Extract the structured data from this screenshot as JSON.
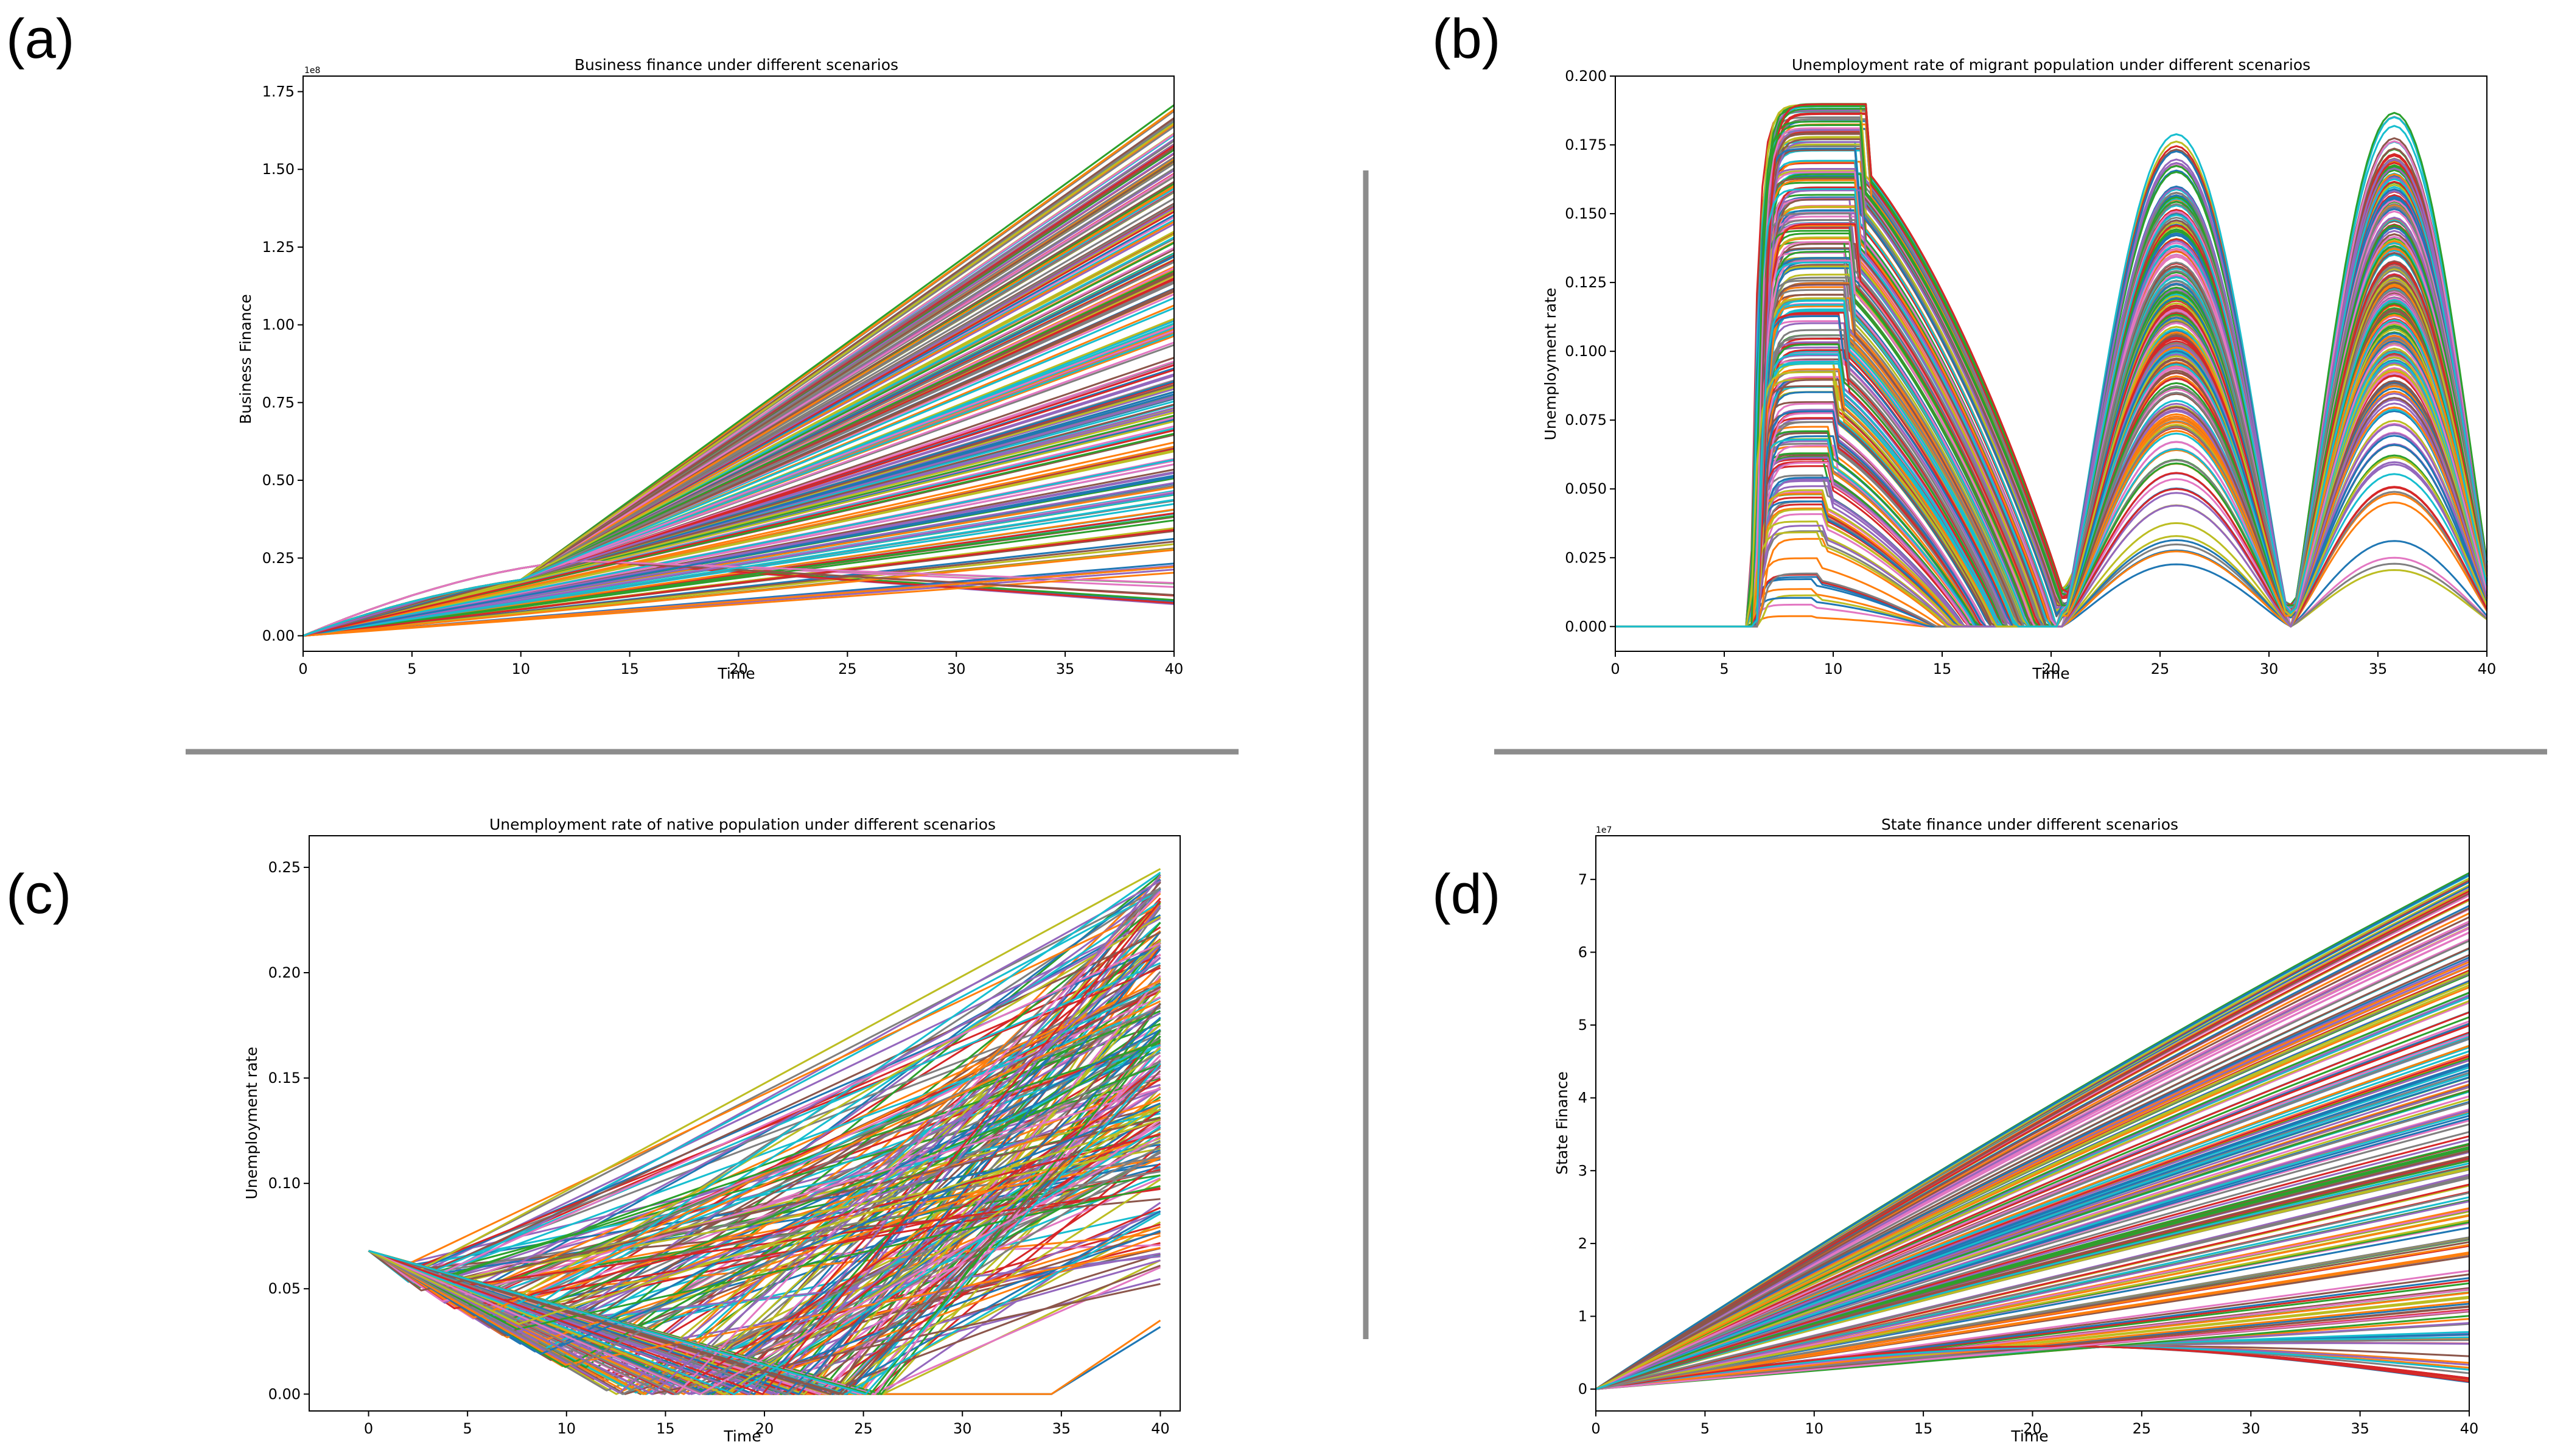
{
  "panel_labels": [
    "(a)",
    "(b)",
    "(c)",
    "(d)"
  ],
  "colors": {
    "series_palette": [
      "#1f77b4",
      "#ff7f0e",
      "#2ca02c",
      "#d62728",
      "#9467bd",
      "#8c564b",
      "#e377c2",
      "#7f7f7f",
      "#bcbd22",
      "#17becf"
    ],
    "separator": "#8c8c8c",
    "axes": "#000000"
  },
  "chart_data": [
    {
      "type": "line",
      "title": "Business finance under different scenarios",
      "xlabel": "Time",
      "ylabel": "Business Finance",
      "offset_text": "1e8",
      "xlim": [
        0,
        40
      ],
      "ylim": [
        -0.05,
        1.8
      ],
      "xticks": [
        "0",
        "5",
        "10",
        "15",
        "20",
        "25",
        "30",
        "35",
        "40"
      ],
      "yticks": [
        "0.00",
        "0.25",
        "0.50",
        "0.75",
        "1.00",
        "1.25",
        "1.50",
        "1.75"
      ],
      "series_count": 240,
      "series_pattern": "all scenarios start at 0 at time 0 and rise; final values at time 40 spread from about 0.09 to 1.71 (x1e8); lowest scenarios peak near 0.24 around time 13 and then decline",
      "final_value_range": [
        0.09,
        1.71
      ]
    },
    {
      "type": "line",
      "title": "Unemployment rate of migrant population under different scenarios",
      "xlabel": "Time",
      "ylabel": "Unemployment rate",
      "xlim": [
        0,
        40
      ],
      "ylim": [
        -0.009,
        0.2
      ],
      "xticks": [
        "0",
        "5",
        "10",
        "15",
        "20",
        "25",
        "30",
        "35",
        "40"
      ],
      "yticks": [
        "0.000",
        "0.025",
        "0.050",
        "0.075",
        "0.100",
        "0.125",
        "0.150",
        "0.175",
        "0.200"
      ],
      "series_count": 240,
      "series_pattern": "zero until about time 6.3, then three oscillation humps peaking near times 10.5, 25.8 and 35.8 with maxima up to about 0.19; troughs near times 20.5 and 31",
      "peak_times": [
        10.5,
        25.8,
        35.8
      ],
      "max_value": 0.191
    },
    {
      "type": "line",
      "title": "Unemployment rate of native population under different scenarios",
      "xlabel": "Time",
      "ylabel": "Unemployment rate",
      "xlim": [
        -3,
        41
      ],
      "ylim": [
        -0.008,
        0.265
      ],
      "xticks": [
        "0",
        "5",
        "10",
        "15",
        "20",
        "25",
        "30",
        "35",
        "40"
      ],
      "yticks": [
        "0.00",
        "0.05",
        "0.10",
        "0.15",
        "0.20",
        "0.25"
      ],
      "series_count": 240,
      "series_pattern": "all scenarios start at 0.068 at time 0, dip to a minimum between times 2 and 27, then rise linearly; final values at time 40 spread from about 0.02 to 0.25",
      "start_value": 0.068,
      "final_value_range": [
        0.022,
        0.252
      ]
    },
    {
      "type": "line",
      "title": "State finance under different scenarios",
      "xlabel": "Time",
      "ylabel": "State Finance",
      "offset_text": "1e7",
      "xlim": [
        0,
        40
      ],
      "ylim": [
        -0.3,
        7.6
      ],
      "xticks": [
        "0",
        "5",
        "10",
        "15",
        "20",
        "25",
        "30",
        "35",
        "40"
      ],
      "yticks": [
        "0",
        "1",
        "2",
        "3",
        "4",
        "5",
        "6",
        "7"
      ],
      "series_count": 240,
      "series_pattern": "all scenarios start at 0 at time 0 and grow; final values at time 40 spread from about 0 to 7.1 (x1e7)",
      "final_value_range": [
        0.0,
        7.1
      ]
    }
  ]
}
